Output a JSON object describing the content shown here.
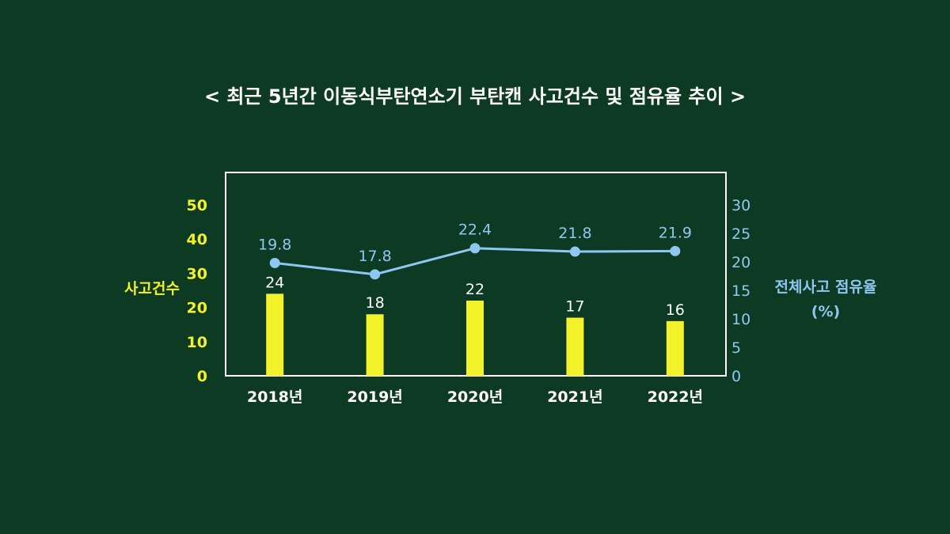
{
  "title": "< 최근 5년간 이동식부탄연소기 부탄캔 사고건수 및 점유율 추이 >",
  "colors": {
    "background": "#0d3a22",
    "bars": "#f3f12a",
    "line": "#8ec8f2",
    "frame": "#ffffff",
    "left_axis": "#f3f12a",
    "right_axis": "#8ec8f2",
    "text": "#ffffff"
  },
  "chart_data": {
    "type": "bar",
    "categories": [
      "2018년",
      "2019년",
      "2020년",
      "2021년",
      "2022년"
    ],
    "y_left": {
      "label": "사고건수",
      "ylim": [
        0,
        50
      ],
      "ticks": [
        0,
        10,
        20,
        30,
        40,
        50
      ]
    },
    "y_right": {
      "label_line1": "전체사고 점유율",
      "label_line2": "(%)",
      "ylim": [
        0,
        30
      ],
      "ticks": [
        0,
        5,
        10,
        15,
        20,
        25,
        30
      ]
    },
    "series": [
      {
        "type": "bar",
        "axis": "left",
        "values": [
          24,
          18,
          22,
          17,
          16
        ],
        "labels": [
          "24",
          "18",
          "22",
          "17",
          "16"
        ]
      },
      {
        "type": "line",
        "axis": "right",
        "values": [
          19.8,
          17.8,
          22.4,
          21.8,
          21.9
        ],
        "labels": [
          "19.8",
          "17.8",
          "22.4",
          "21.8",
          "21.9"
        ]
      }
    ],
    "grid": false,
    "legend": "none"
  }
}
